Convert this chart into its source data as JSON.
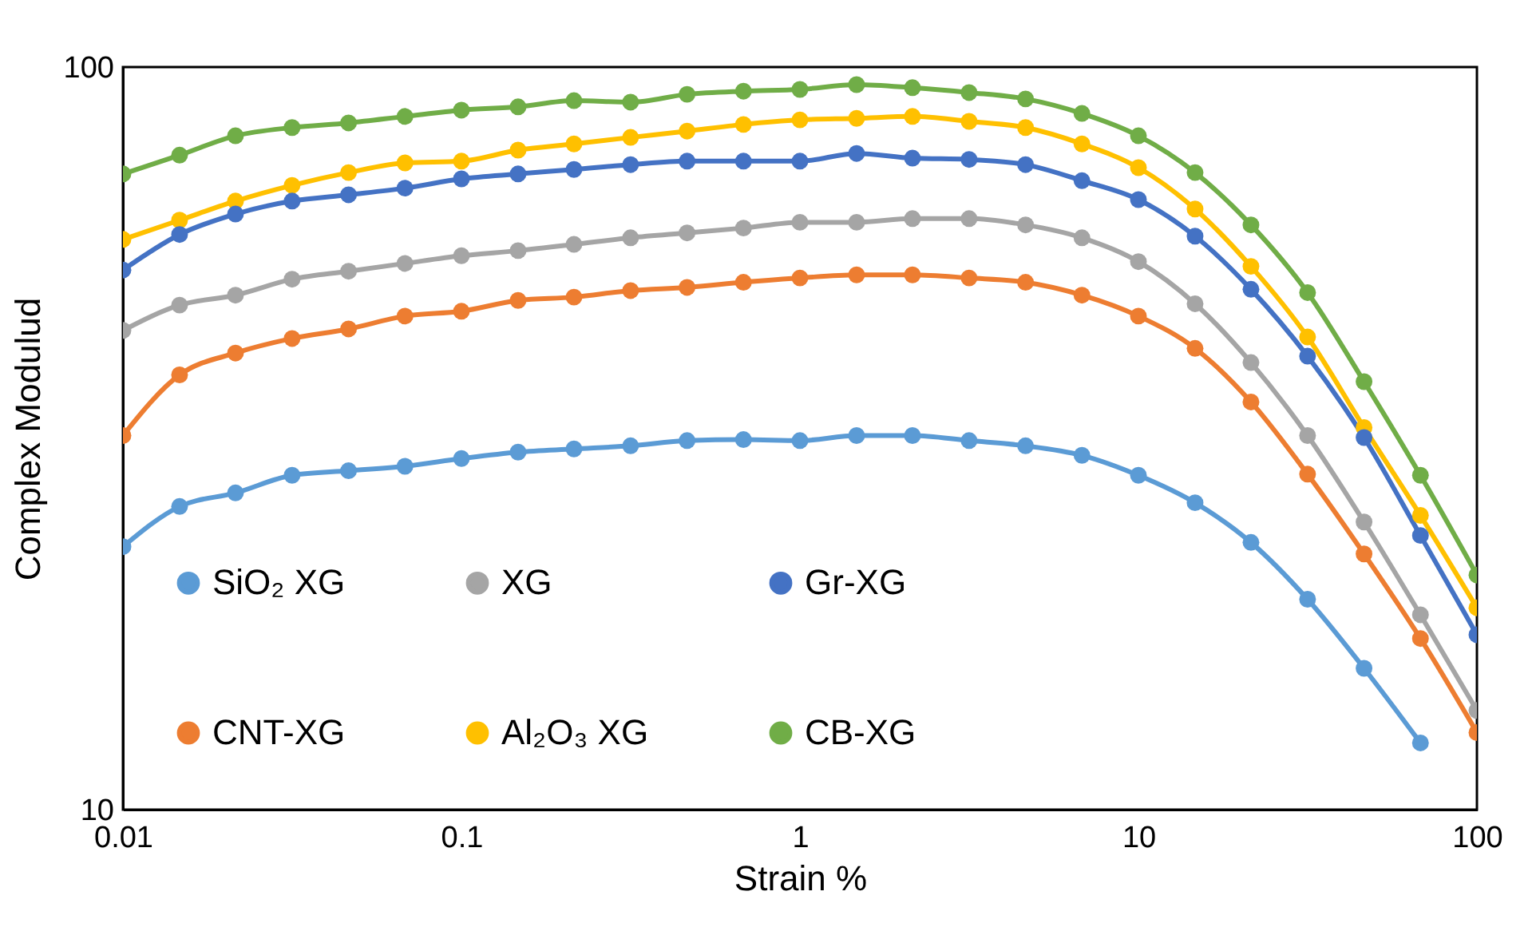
{
  "chart_data": {
    "type": "line",
    "xlabel": "Strain %",
    "ylabel": "Complex Modulud",
    "x": [
      0.01,
      0.0147,
      0.0215,
      0.0316,
      0.0464,
      0.0681,
      0.1,
      0.147,
      0.215,
      0.316,
      0.464,
      0.681,
      1,
      1.47,
      2.15,
      3.16,
      4.64,
      6.81,
      10,
      14.7,
      21.5,
      31.6,
      46.4,
      68.1,
      100
    ],
    "series": [
      {
        "name": "SiO₂ XG",
        "color": "#5b9bd5",
        "values": [
          22.6,
          25.6,
          26.7,
          28.2,
          28.6,
          29.0,
          29.7,
          30.3,
          30.6,
          30.9,
          31.4,
          31.5,
          31.4,
          31.9,
          31.9,
          31.4,
          30.9,
          30.0,
          28.2,
          25.9,
          22.9,
          19.2,
          15.5,
          12.3,
          null
        ]
      },
      {
        "name": "CNT-XG",
        "color": "#ed7d31",
        "values": [
          31.9,
          38.5,
          41.2,
          43.1,
          44.4,
          46.2,
          46.9,
          48.5,
          49.0,
          50.0,
          50.5,
          51.3,
          52.0,
          52.5,
          52.5,
          52.0,
          51.3,
          49.3,
          46.2,
          41.8,
          35.4,
          28.3,
          22.1,
          17.0,
          12.7
        ]
      },
      {
        "name": "XG",
        "color": "#a5a5a5",
        "values": [
          44.2,
          47.8,
          49.3,
          51.8,
          53.1,
          54.4,
          55.7,
          56.6,
          57.7,
          58.9,
          59.8,
          60.7,
          61.8,
          61.8,
          62.5,
          62.5,
          61.3,
          58.9,
          54.7,
          48.0,
          40.0,
          31.9,
          24.4,
          18.3,
          13.6
        ]
      },
      {
        "name": "Al₂O₃ XG",
        "color": "#ffc000",
        "values": [
          58.6,
          62.2,
          66.0,
          69.3,
          72.1,
          74.3,
          74.7,
          77.3,
          78.8,
          80.4,
          82.0,
          83.7,
          84.9,
          85.3,
          85.8,
          84.5,
          82.9,
          78.8,
          73.2,
          64.4,
          53.9,
          43.3,
          32.7,
          24.9,
          18.7
        ]
      },
      {
        "name": "Gr-XG",
        "color": "#4472c4",
        "values": [
          53.3,
          59.5,
          63.4,
          66.0,
          67.3,
          68.7,
          70.7,
          71.8,
          72.8,
          73.9,
          74.7,
          74.7,
          74.7,
          76.5,
          75.4,
          75.1,
          73.9,
          70.3,
          66.3,
          59.2,
          50.2,
          40.8,
          31.7,
          23.4,
          17.2
        ]
      },
      {
        "name": "CB-XG",
        "color": "#70ad47",
        "values": [
          71.8,
          76.1,
          80.8,
          82.9,
          84.1,
          85.8,
          87.5,
          88.4,
          90.1,
          89.7,
          91.9,
          92.8,
          93.3,
          94.7,
          93.8,
          92.4,
          90.6,
          86.6,
          80.8,
          72.1,
          61.3,
          49.7,
          37.7,
          28.2,
          20.7
        ]
      }
    ],
    "xlim": [
      0.01,
      100
    ],
    "xticks": [
      0.01,
      0.1,
      1,
      10,
      100
    ],
    "ylim": [
      10,
      100
    ],
    "yticks": [
      10,
      100
    ],
    "log": "xy",
    "marker": "circle",
    "legend": "bottom left"
  }
}
